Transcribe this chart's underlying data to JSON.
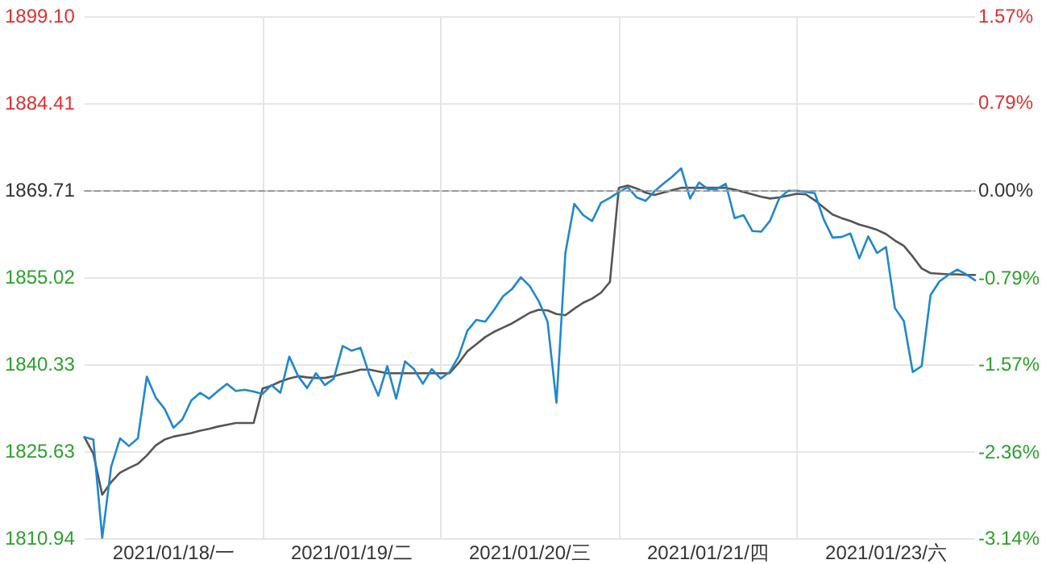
{
  "chart_data": {
    "type": "line",
    "categories": [
      null,
      null,
      null,
      null,
      null,
      null,
      null,
      null,
      null,
      null,
      "2021/01/18/一",
      null,
      null,
      null,
      null,
      null,
      null,
      null,
      null,
      null,
      null,
      null,
      null,
      null,
      null,
      null,
      null,
      null,
      null,
      null,
      "2021/01/19/二",
      null,
      null,
      null,
      null,
      null,
      null,
      null,
      null,
      null,
      null,
      null,
      null,
      null,
      null,
      null,
      null,
      null,
      null,
      null,
      "2021/01/20/三",
      null,
      null,
      null,
      null,
      null,
      null,
      null,
      null,
      null,
      null,
      null,
      null,
      null,
      null,
      null,
      null,
      null,
      null,
      null,
      "2021/01/21/四",
      null,
      null,
      null,
      null,
      null,
      null,
      null,
      null,
      null,
      null,
      null,
      null,
      null,
      null,
      null,
      null,
      null,
      null,
      null,
      "2021/01/23/六",
      null,
      null,
      null,
      null,
      null,
      null,
      null,
      null,
      null,
      null
    ],
    "ylim": [
      1810.94,
      1899.1
    ],
    "yticks": [
      1810.94,
      1825.63,
      1840.33,
      1855.02,
      1869.71,
      1884.41,
      {
        "value": 1899.1,
        "label": "1899.10"
      }
    ],
    "y2lim": [
      -3.14,
      1.57
    ],
    "y2ticks": [
      {
        "value": -3.14,
        "label": "-3.14%"
      },
      {
        "value": -2.36,
        "label": "-2.36%"
      },
      {
        "value": -1.57,
        "label": "-1.57%"
      },
      {
        "value": -0.79,
        "label": "-0.79%"
      },
      {
        "value": 0,
        "label": "0.00%"
      },
      {
        "value": 0.79,
        "label": "0.79%"
      },
      {
        "value": 1.57,
        "label": "1.57%"
      }
    ],
    "ref_lines": [
      {
        "axis": "y",
        "value": 1869.71,
        "color": "#999999",
        "line_style": "dashed"
      }
    ],
    "grid": true,
    "marker": "none",
    "line_style": "solid",
    "series": [
      {
        "color": "#555555",
        "values": [
          1828.0,
          1825.2,
          1818.3,
          1820.4,
          1822.0,
          1822.8,
          1823.5,
          1824.9,
          1826.6,
          1827.6,
          1828.1,
          1828.4,
          1828.7,
          1829.1,
          1829.4,
          1829.8,
          1830.1,
          1830.4,
          1830.4,
          1830.4,
          1836.2,
          1836.7,
          1837.4,
          1837.9,
          1838.3,
          1838.1,
          1838.0,
          1838.0,
          1838.3,
          1838.7,
          1839.0,
          1839.4,
          1839.4,
          1839.1,
          1838.8,
          1838.8,
          1838.8,
          1838.8,
          1838.8,
          1838.8,
          1838.8,
          1838.8,
          1840.5,
          1842.5,
          1843.7,
          1844.9,
          1845.8,
          1846.5,
          1847.2,
          1848.1,
          1849.0,
          1849.5,
          1849.4,
          1848.8,
          1848.6,
          1849.7,
          1850.7,
          1851.4,
          1852.4,
          1854.2,
          1870.1,
          1870.5,
          1870.0,
          1869.3,
          1868.9,
          1869.3,
          1869.7,
          1870.1,
          1870.1,
          1870.1,
          1870.1,
          1870.1,
          1870.1,
          1869.8,
          1869.4,
          1869.0,
          1868.6,
          1868.3,
          1868.5,
          1868.8,
          1869.1,
          1869.0,
          1868.0,
          1866.8,
          1865.6,
          1865.0,
          1864.5,
          1863.9,
          1863.5,
          1863.0,
          1862.3,
          1861.2,
          1860.3,
          1858.5,
          1856.5,
          1855.7,
          1855.6,
          1855.5,
          1855.5,
          1855.4,
          1855.4
        ]
      },
      {
        "color": "#1f88d0",
        "values": [
          1828.0,
          1827.6,
          1811.0,
          1823.0,
          1827.8,
          1826.5,
          1827.8,
          1838.2,
          1834.7,
          1832.8,
          1829.6,
          1831.0,
          1834.2,
          1835.5,
          1834.5,
          1835.8,
          1837.0,
          1835.8,
          1836.0,
          1835.7,
          1835.3,
          1836.8,
          1835.5,
          1841.6,
          1838.3,
          1836.3,
          1838.8,
          1836.8,
          1837.9,
          1843.4,
          1842.6,
          1843.1,
          1838.5,
          1835.0,
          1840.0,
          1834.5,
          1840.8,
          1839.5,
          1837.0,
          1839.5,
          1837.9,
          1839.0,
          1841.6,
          1846.0,
          1847.8,
          1847.5,
          1849.5,
          1851.8,
          1853.0,
          1855.0,
          1853.5,
          1851.0,
          1847.5,
          1833.8,
          1859.1,
          1867.4,
          1865.5,
          1864.5,
          1867.6,
          1868.4,
          1869.4,
          1870.2,
          1868.5,
          1867.9,
          1869.5,
          1870.8,
          1872.0,
          1873.4,
          1868.3,
          1871.0,
          1869.9,
          1869.9,
          1870.8,
          1865.0,
          1865.5,
          1862.8,
          1862.7,
          1864.6,
          1868.3,
          1869.6,
          1869.6,
          1869.4,
          1869.2,
          1864.8,
          1861.7,
          1861.8,
          1862.4,
          1858.2,
          1861.9,
          1859.1,
          1860.1,
          1849.8,
          1847.6,
          1839.0,
          1840.0,
          1852.0,
          1854.3,
          1855.4,
          1856.3,
          1855.5,
          1854.5
        ]
      }
    ]
  }
}
